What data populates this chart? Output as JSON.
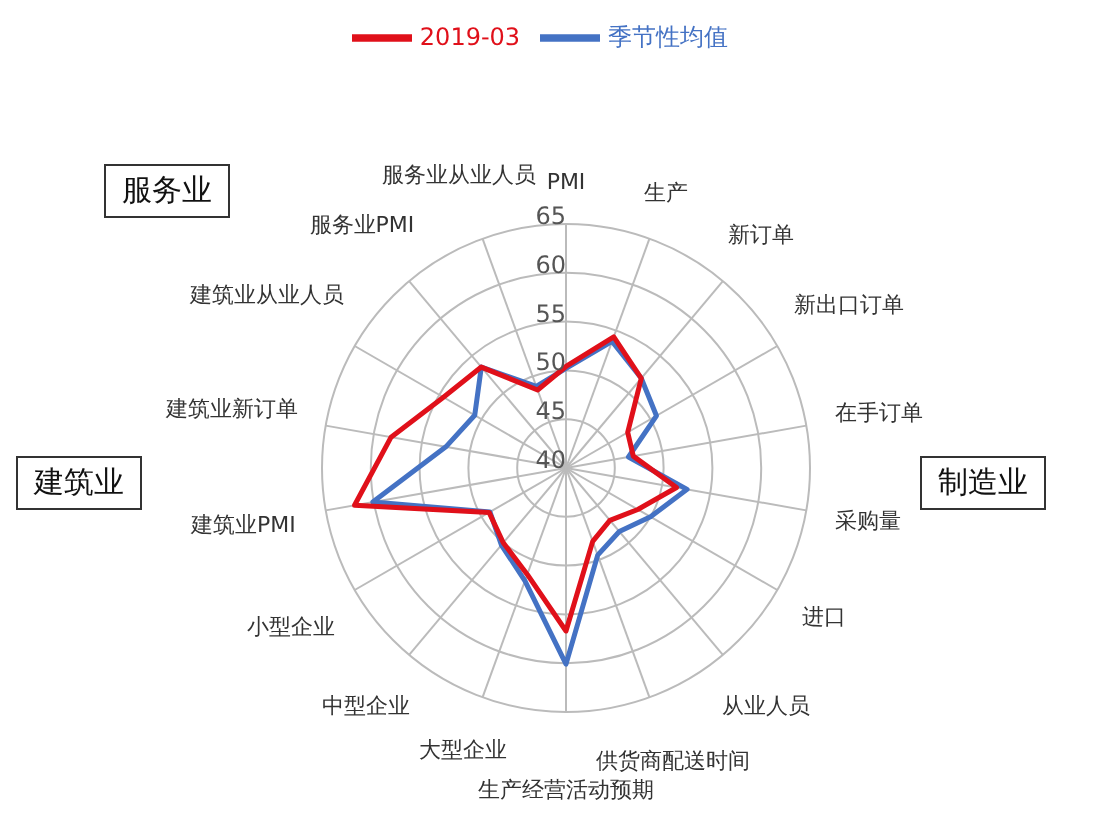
{
  "chart_data": {
    "type": "radar",
    "categories": [
      "PMI",
      "生产",
      "新订单",
      "新出口订单",
      "在手订单",
      "采购量",
      "进口",
      "从业人员",
      "供货商配送时间",
      "生产经营活动预期",
      "大型企业",
      "中型企业",
      "小型企业",
      "建筑业PMI",
      "建筑业新订单",
      "建筑业从业人员",
      "服务业PMI",
      "服务业从业人员"
    ],
    "series": [
      {
        "name": "季节性均值",
        "color": "#4472c4",
        "values": [
          50.2,
          53.8,
          52.0,
          50.7,
          46.5,
          52.6,
          50.0,
          48.5,
          49.5,
          60.1,
          52.3,
          50.3,
          49.0,
          60.1,
          52.5,
          50.8,
          53.5,
          48.9
        ]
      },
      {
        "name": "2019-03",
        "color": "#e0101a",
        "values": [
          50.4,
          54.3,
          52.0,
          47.3,
          47.0,
          51.5,
          48.5,
          47.0,
          48.0,
          56.7,
          51.6,
          50.0,
          49.1,
          62.0,
          58.2,
          54.5,
          53.5,
          48.5
        ]
      }
    ],
    "ylim": [
      40,
      65
    ],
    "yticks": [
      40,
      45,
      50,
      55,
      60,
      65
    ],
    "grid": true,
    "legend": "top",
    "annotations": [
      "服务业",
      "建筑业",
      "制造业"
    ]
  }
}
